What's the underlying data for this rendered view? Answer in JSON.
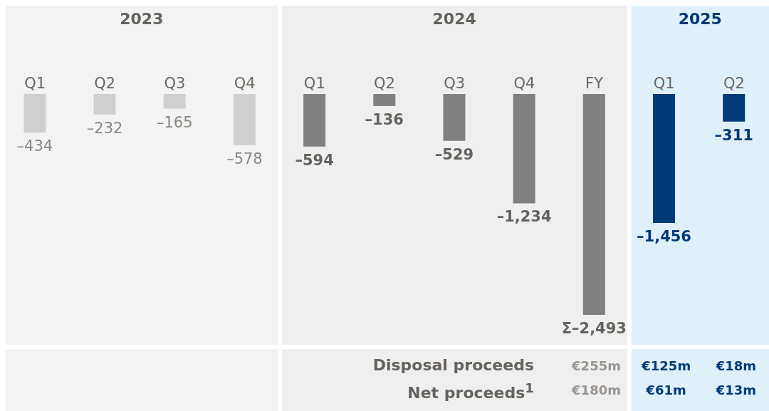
{
  "chart_data": {
    "type": "bar",
    "categories": [
      "Q1",
      "Q2",
      "Q3",
      "Q4",
      "Q1",
      "Q2",
      "Q3",
      "Q4",
      "FY",
      "Q1",
      "Q2"
    ],
    "values": [
      -434,
      -232,
      -165,
      -578,
      -594,
      -136,
      -529,
      -1234,
      -2493,
      -1456,
      -311
    ],
    "colors": [
      "#d0cfcd",
      "#d0cfcd",
      "#d0cfcd",
      "#d0cfcd",
      "#808080",
      "#808080",
      "#808080",
      "#808080",
      "#808080",
      "#003a78",
      "#003a78"
    ],
    "value_labels": [
      "–434",
      "–232",
      "–165",
      "–578",
      "–594",
      "–136",
      "–529",
      "–1,234",
      "Σ–2,493",
      "–1,456",
      "–311"
    ],
    "annotations": [
      "2023",
      "2024",
      "2025",
      "Disposal proceeds",
      "Net proceeds$^{1}$",
      "€255m",
      "€180m",
      "€125m",
      "€61m",
      "€18m",
      "€13m"
    ]
  }
}
